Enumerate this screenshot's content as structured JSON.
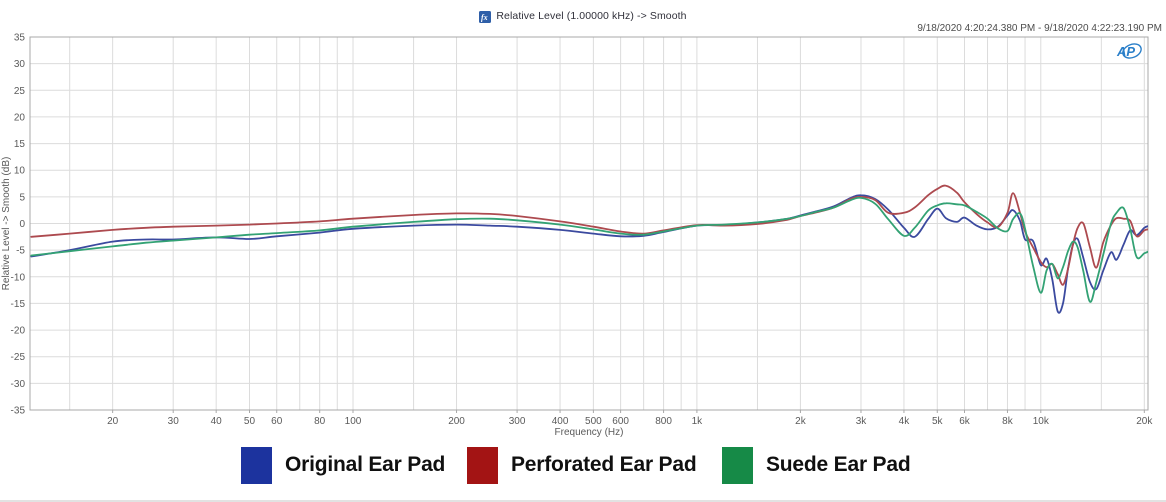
{
  "header": {
    "title": "Relative Level (1.00000 kHz) -> Smooth",
    "title_icon": "function-graph-icon",
    "timestamp_range": "9/18/2020 4:20:24.380 PM - 9/18/2020 4:22:23.190 PM",
    "logo_text": "AP"
  },
  "chart_data": {
    "type": "line",
    "title": "Relative Level (1.00000 kHz) -> Smooth",
    "xlabel": "Frequency (Hz)",
    "ylabel": "Relative Level -> Smooth (dB)",
    "x_scale": "log",
    "xlim": [
      11.5,
      20500
    ],
    "ylim": [
      -35,
      35
    ],
    "grid": true,
    "legend_position": "bottom",
    "grid_color": "#dcdcdc",
    "border_color": "#a8a8a8",
    "y_ticks": [
      35,
      30,
      25,
      20,
      15,
      10,
      5,
      0,
      -5,
      -10,
      -15,
      -20,
      -25,
      -30,
      -35
    ],
    "x_ticks": [
      {
        "value": 20,
        "label": "20"
      },
      {
        "value": 30,
        "label": "30"
      },
      {
        "value": 40,
        "label": "40"
      },
      {
        "value": 50,
        "label": "50"
      },
      {
        "value": 60,
        "label": "60"
      },
      {
        "value": 80,
        "label": "80"
      },
      {
        "value": 100,
        "label": "100"
      },
      {
        "value": 200,
        "label": "200"
      },
      {
        "value": 300,
        "label": "300"
      },
      {
        "value": 400,
        "label": "400"
      },
      {
        "value": 500,
        "label": "500"
      },
      {
        "value": 600,
        "label": "600"
      },
      {
        "value": 800,
        "label": "800"
      },
      {
        "value": 1000,
        "label": "1k"
      },
      {
        "value": 2000,
        "label": "2k"
      },
      {
        "value": 3000,
        "label": "3k"
      },
      {
        "value": 4000,
        "label": "4k"
      },
      {
        "value": 5000,
        "label": "5k"
      },
      {
        "value": 6000,
        "label": "6k"
      },
      {
        "value": 8000,
        "label": "8k"
      },
      {
        "value": 10000,
        "label": "10k"
      },
      {
        "value": 20000,
        "label": "20k"
      }
    ],
    "x_gridlines": [
      15,
      20,
      30,
      40,
      50,
      60,
      70,
      80,
      90,
      100,
      150,
      200,
      300,
      400,
      500,
      600,
      700,
      800,
      900,
      1000,
      1500,
      2000,
      3000,
      4000,
      5000,
      6000,
      7000,
      8000,
      9000,
      10000,
      15000,
      20000
    ],
    "x": [
      11.6,
      15,
      20,
      25,
      30,
      40,
      50,
      60,
      80,
      100,
      150,
      200,
      250,
      300,
      400,
      500,
      600,
      700,
      800,
      1000,
      1200,
      1500,
      1800,
      2000,
      2200,
      2500,
      2800,
      3000,
      3300,
      3600,
      4000,
      4300,
      4700,
      5000,
      5300,
      5700,
      6000,
      6500,
      7000,
      7500,
      8000,
      8300,
      8700,
      9000,
      9500,
      10000,
      10400,
      10800,
      11200,
      11600,
      12000,
      12400,
      12800,
      13300,
      13900,
      14500,
      15200,
      16000,
      16600,
      17400,
      18200,
      19000,
      20000,
      20500
    ],
    "series": [
      {
        "name": "Original Ear Pad",
        "color": "#3b4a9f",
        "values": [
          -6.2,
          -5.0,
          -3.4,
          -3.0,
          -3.0,
          -2.6,
          -2.9,
          -2.4,
          -1.7,
          -1.0,
          -0.4,
          -0.2,
          -0.4,
          -0.6,
          -1.2,
          -1.9,
          -2.4,
          -2.3,
          -1.6,
          -0.4,
          -0.3,
          0.2,
          0.8,
          1.5,
          2.2,
          3.2,
          4.8,
          5.3,
          4.6,
          2.6,
          -0.8,
          -2.5,
          0.8,
          2.8,
          1.0,
          0.3,
          1.1,
          -0.4,
          -1.1,
          -0.6,
          1.5,
          2.5,
          0.5,
          -3.0,
          -3.3,
          -7.8,
          -6.6,
          -10.5,
          -16.5,
          -15.0,
          -8.5,
          -4.0,
          -2.9,
          -6.5,
          -11.0,
          -12.3,
          -8.8,
          -5.4,
          -6.8,
          -4.0,
          -1.3,
          -2.2,
          -0.8,
          -0.5
        ]
      },
      {
        "name": "Perforated Ear Pad",
        "color": "#ad4a4f",
        "values": [
          -2.5,
          -1.9,
          -1.2,
          -0.8,
          -0.6,
          -0.4,
          -0.2,
          0.0,
          0.4,
          0.9,
          1.6,
          1.9,
          1.8,
          1.4,
          0.4,
          -0.6,
          -1.5,
          -1.9,
          -1.3,
          -0.3,
          -0.4,
          -0.1,
          0.6,
          1.4,
          2.0,
          3.0,
          4.6,
          5.0,
          4.4,
          2.0,
          2.0,
          3.0,
          5.3,
          6.5,
          7.1,
          5.8,
          4.0,
          1.8,
          0.2,
          -0.7,
          2.0,
          5.7,
          2.0,
          -1.5,
          -4.5,
          -7.2,
          -8.2,
          -7.6,
          -9.5,
          -11.5,
          -8.5,
          -4.0,
          -0.8,
          0.0,
          -4.5,
          -8.3,
          -3.5,
          -0.3,
          1.0,
          0.9,
          0.5,
          -2.4,
          -1.3,
          -1.1
        ]
      },
      {
        "name": "Suede Ear Pad",
        "color": "#33a274",
        "values": [
          -6.0,
          -5.2,
          -4.3,
          -3.6,
          -3.2,
          -2.6,
          -2.1,
          -1.8,
          -1.3,
          -0.6,
          0.3,
          0.8,
          0.9,
          0.6,
          -0.2,
          -1.1,
          -1.9,
          -2.1,
          -1.5,
          -0.4,
          -0.2,
          0.2,
          0.8,
          1.4,
          2.1,
          3.0,
          4.4,
          4.8,
          3.7,
          0.8,
          -2.3,
          -0.8,
          2.4,
          3.4,
          3.8,
          3.6,
          3.4,
          2.2,
          0.9,
          -0.9,
          -1.4,
          0.8,
          1.9,
          -1.0,
          -8.0,
          -13.0,
          -8.8,
          -7.6,
          -10.3,
          -8.2,
          -5.2,
          -3.4,
          -4.5,
          -9.0,
          -14.7,
          -11.0,
          -5.8,
          0.0,
          2.0,
          2.9,
          -1.0,
          -6.3,
          -5.6,
          -5.3
        ]
      }
    ]
  },
  "legend": {
    "items": [
      {
        "label": "Original Ear Pad",
        "color": "#1c339e"
      },
      {
        "label": "Perforated Ear Pad",
        "color": "#a31414"
      },
      {
        "label": "Suede Ear Pad",
        "color": "#168a47"
      }
    ]
  }
}
